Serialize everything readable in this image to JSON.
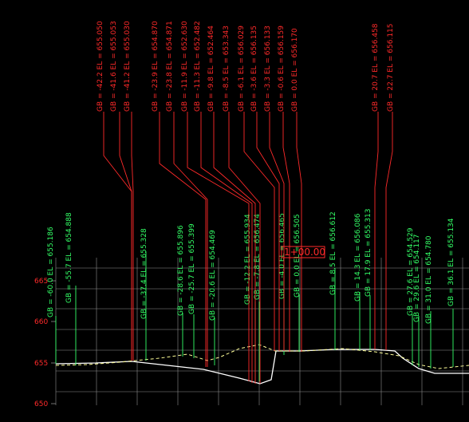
{
  "colors": {
    "background": "#000000",
    "red": "#ff2a2a",
    "green": "#33ff66",
    "grid": "#8f8f8f",
    "white": "#ffffff",
    "yellow": "#ffff99"
  },
  "elevation_labels": [
    {
      "value": "665",
      "color": "red"
    },
    {
      "value": "660",
      "color": "red"
    },
    {
      "value": "655",
      "color": "red"
    },
    {
      "value": "650",
      "color": "red"
    }
  ],
  "red_callouts": [
    "GB = -42.2  EL = 655.050",
    "GB = -41.6  EL = 655.053",
    "GB = -41.2  EL = 655.030",
    "GB = -23.9  EL = 654.870",
    "GB = -23.8  EL = 654.871",
    "GB = -11.9  EL = 652.630",
    "GB = -11.3  EL = 652.482",
    "GB = -9.8  EL = 652.464",
    "GB = -8.5  EL = 653.343",
    "GB = -6.1  EL = 656.029",
    "GB = -3.6  EL = 656.135",
    "GB = -3.3  EL = 656.133",
    "GB = -0.6  EL = 656.159",
    "GB = 0.0  EL = 656.170",
    "GB = 20.7  EL = 656.458",
    "GB = 22.7  EL = 656.115"
  ],
  "green_callouts": [
    "GB = -60.0  EL = 655.186",
    "GB = -55.7  EL = 654.888",
    "GB = -37.4  EL = 655.328",
    "GB = -28.6  EL = 655.896",
    "GB = -25.7  EL = 655.399",
    "GB = -20.6  EL = 654.469",
    "GB = -12.2  EL = 655.934",
    "GB = -7.8  EL = 656.474",
    "GB = -4.0  EL = 656.465",
    "GB = 0.0  EL = 656.505",
    "GB = 8.5  EL = 656.612",
    "GB = 14.3  EL = 656.086",
    "GB = 17.9  EL = 655.313",
    "GB = 27.6  EL = 654.529",
    "GB = 29.6  EL = 654.117",
    "GB = 31.0  EL = 654.780",
    "GB = 36.1  EL = 655.134"
  ],
  "station_marker": {
    "text": "1+00.00"
  }
}
